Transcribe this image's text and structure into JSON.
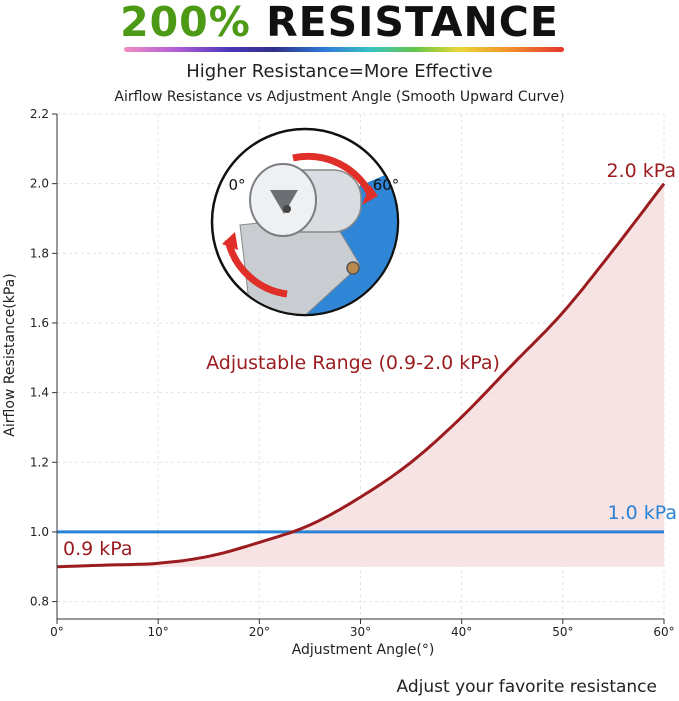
{
  "header": {
    "headline_pct": "200%",
    "headline_word": "RESISTANCE",
    "subtitle": "Higher Resistance=More Effective"
  },
  "footer": {
    "note": "Adjust your favorite resistance"
  },
  "colors": {
    "curve": "#9b1c1f",
    "baseline": "#2a82d4",
    "fill": "#f6dede",
    "headline_green": "#4c9a16"
  },
  "inset": {
    "left_label": "0°",
    "right_label": "60°",
    "icon": "adjustable-hinge-knob-image"
  },
  "chart_data": {
    "type": "line",
    "title": "Airflow Resistance vs Adjustment Angle (Smooth Upward Curve)",
    "xlabel": "Adjustment Angle(°)",
    "ylabel": "Airflow Resistance(kPa)",
    "xlim": [
      0,
      60
    ],
    "ylim": [
      0.75,
      2.2
    ],
    "xticks": [
      "0°",
      "10°",
      "20°",
      "30°",
      "40°",
      "50°",
      "60°"
    ],
    "yticks": [
      "0.8",
      "1.0",
      "1.2",
      "1.4",
      "1.6",
      "1.8",
      "2.0",
      "2.2"
    ],
    "grid": true,
    "series": [
      {
        "name": "",
        "style": "curve",
        "x": [
          0,
          5,
          10,
          15,
          20,
          25,
          30,
          35,
          40,
          45,
          50,
          55,
          60
        ],
        "y": [
          0.9,
          0.905,
          0.91,
          0.93,
          0.97,
          1.02,
          1.1,
          1.2,
          1.33,
          1.48,
          1.63,
          1.81,
          2.0
        ]
      },
      {
        "name": "",
        "style": "reference",
        "x": [
          0,
          60
        ],
        "y": [
          1.0,
          1.0
        ]
      }
    ],
    "annotations": {
      "end_label": "2.0 kPa",
      "start_label": "0.9 kPa",
      "reference_label": "1.0 kPa",
      "range_label": "Adjustable Range (0.9-2.0 kPa)"
    }
  }
}
